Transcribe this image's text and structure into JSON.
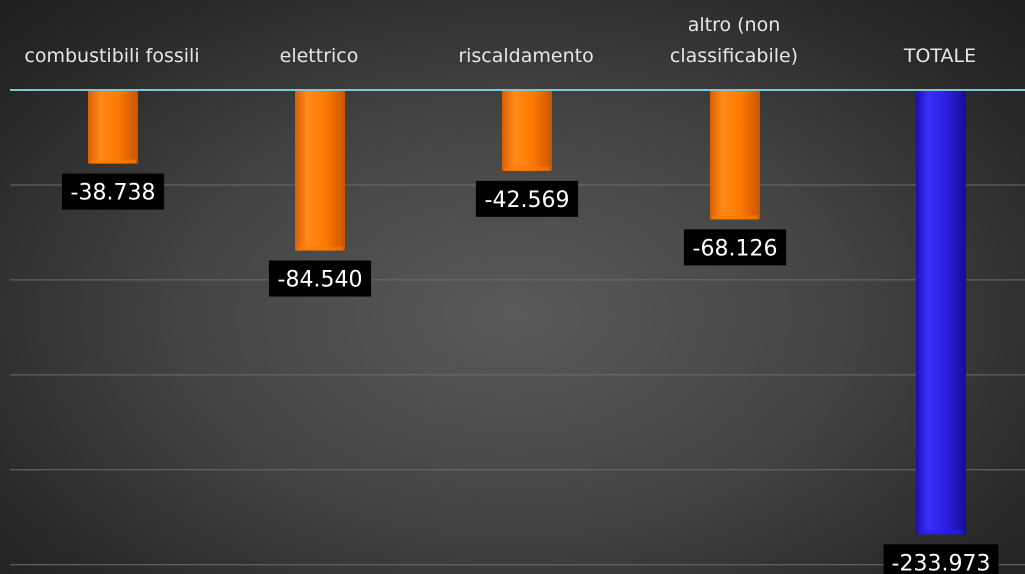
{
  "chart_data": {
    "type": "bar",
    "categories": [
      [
        "combustibili fossili"
      ],
      [
        "elettrico"
      ],
      [
        "riscaldamento"
      ],
      [
        "altro (non",
        "classificabile)"
      ],
      [
        "TOTALE"
      ]
    ],
    "values": [
      -38738,
      -84540,
      -42569,
      -68126,
      -233973
    ],
    "data_labels": [
      "-38.738",
      "-84.540",
      "-42.569",
      "-68.126",
      "-233.973"
    ],
    "colors": [
      "#ff7a00",
      "#ff7a00",
      "#ff7a00",
      "#ff7a00",
      "#2a1fe0"
    ],
    "title": "",
    "xlabel": "",
    "ylabel": "",
    "ylim": [
      -250000,
      0
    ],
    "grid": true,
    "legend": "none"
  }
}
